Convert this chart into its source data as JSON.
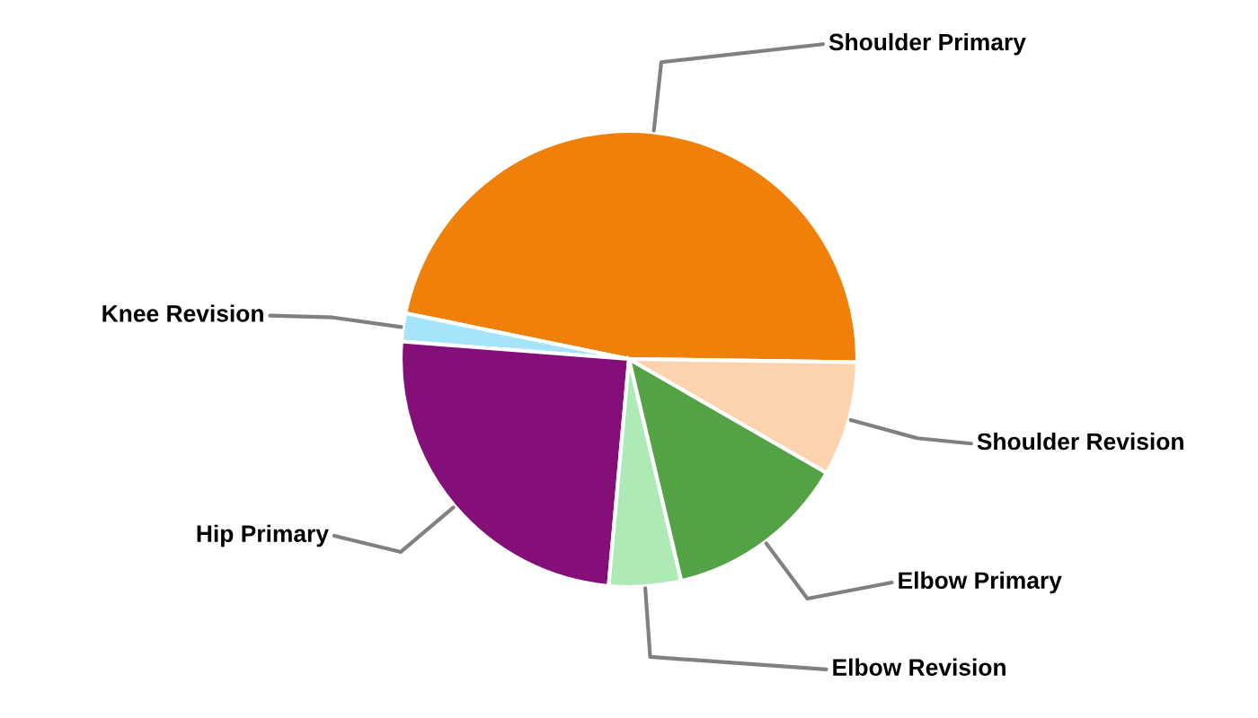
{
  "chart_data": {
    "type": "pie",
    "categories": [
      "Shoulder Primary",
      "Knee Revision",
      "Hip Primary",
      "Elbow Revision",
      "Elbow Primary",
      "Shoulder Revision"
    ],
    "values": [
      47,
      2,
      24.8,
      5.1,
      13,
      8.1
    ],
    "colors": [
      "#f0800a",
      "#a6e4fb",
      "#850f78",
      "#aeeab6",
      "#54a246",
      "#fcd3ae"
    ]
  }
}
